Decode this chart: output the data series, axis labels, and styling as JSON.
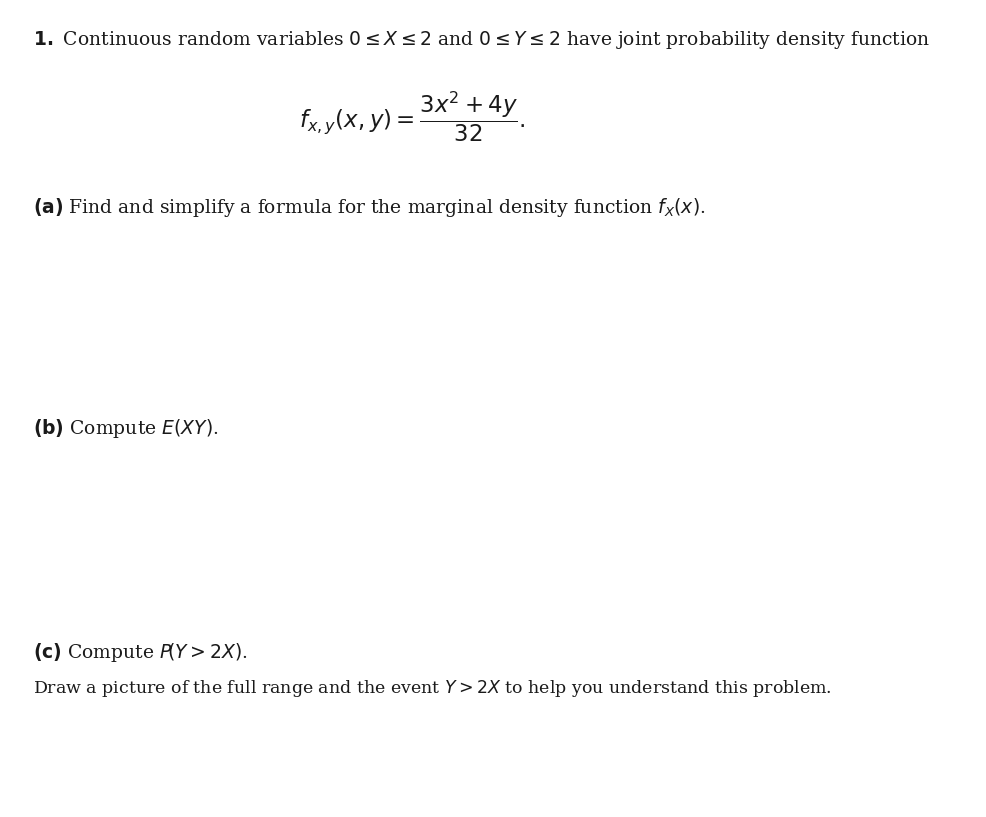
{
  "bg_color": "#ffffff",
  "figsize": [
    9.87,
    8.17
  ],
  "dpi": 100,
  "line1_bold": "1.",
  "line1_normal": " Continuous random variables 0 ≤ ",
  "line1_italic_X": "X",
  "line1_mid1": " ≤ 2 and 0 ≤ ",
  "line1_italic_Y": "Y",
  "line1_mid2": " ≤ 2 have joint probability density function",
  "formula_lhs": "$f_{x,y}(x, y) = $",
  "formula_numerator": "$3x^2 + 4y$",
  "formula_denominator": "$32$",
  "part_a_bold": "(a)",
  "part_a_text": " Find and simplify a formula for the marginal density function ",
  "part_a_end": "$f_X(x)$.",
  "part_b_bold": "(b)",
  "part_b_text": " Compute ",
  "part_b_formula": "$E(XY)$.",
  "part_c_bold": "(c)",
  "part_c_text": " Compute ",
  "part_c_formula": "$P\\big(Y > 2X\\big)$.",
  "part_c2_text": "Draw a picture of the full range and the event ",
  "part_c2_italic": "$Y > 2X$",
  "part_c2_end": " to help you understand this problem.",
  "text_color": "#1a1a1a",
  "font_family": "DejaVu Serif",
  "main_fontsize": 13.5,
  "small_fontsize": 12.5
}
